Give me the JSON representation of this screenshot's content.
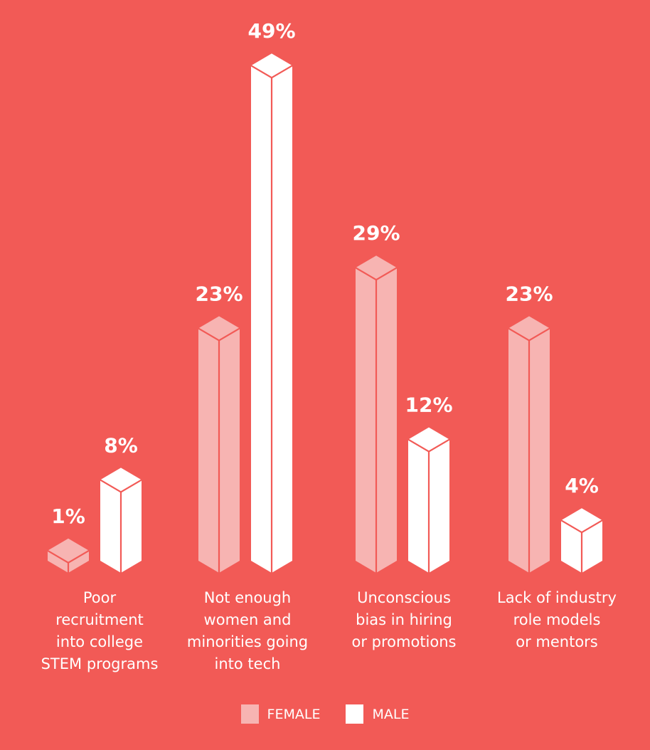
{
  "chart_data": {
    "type": "bar",
    "categories": [
      "Poor\nrecruitment\ninto college\nSTEM programs",
      "Not enough\nwomen and\nminorities going\ninto tech",
      "Unconscious\nbias in hiring\nor promotions",
      "Lack of industry\nrole models\nor mentors"
    ],
    "series": [
      {
        "name": "FEMALE",
        "values": [
          1,
          23,
          29,
          23
        ],
        "color": "#f7b4b2"
      },
      {
        "name": "MALE",
        "values": [
          8,
          49,
          12,
          4
        ],
        "color": "#ffffff"
      }
    ],
    "value_labels": {
      "FEMALE": [
        "1%",
        "23%",
        "29%",
        "23%"
      ],
      "MALE": [
        "8%",
        "49%",
        "12%",
        "4%"
      ]
    },
    "title": "",
    "xlabel": "",
    "ylabel": "",
    "ylim": [
      0,
      50
    ],
    "grid": false,
    "legend_position": "bottom-center",
    "background_color": "#f25a56"
  }
}
